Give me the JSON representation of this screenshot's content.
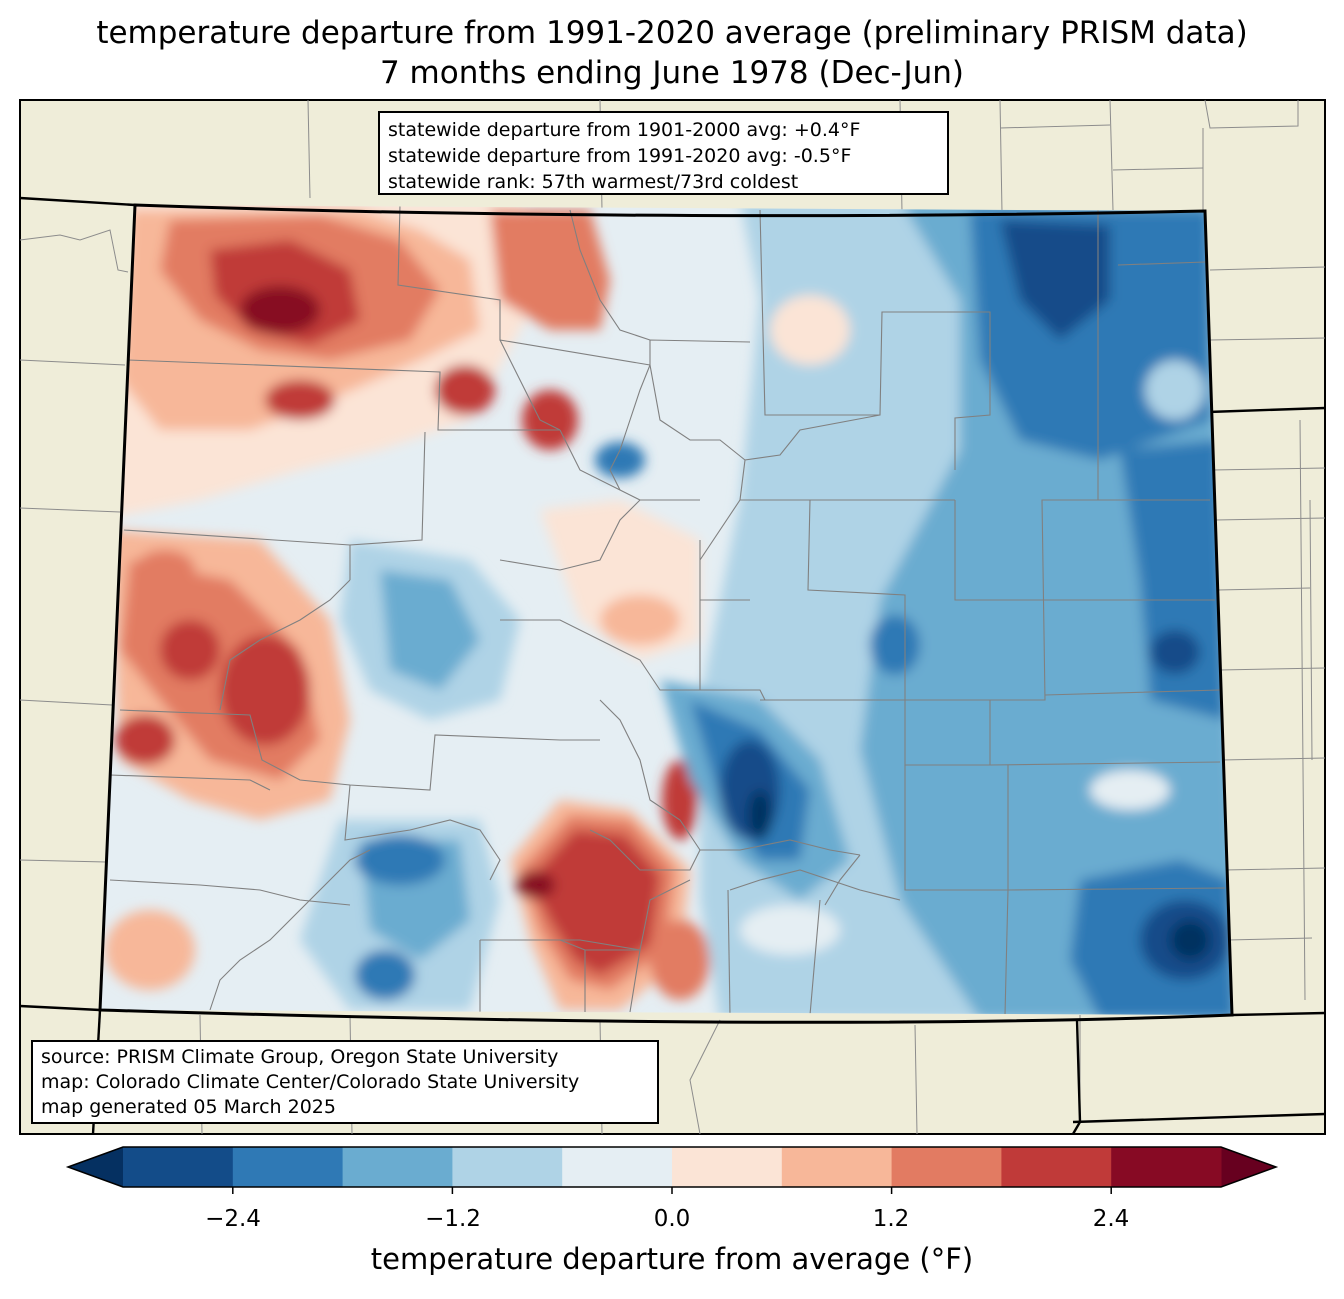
{
  "title": {
    "line1": "temperature departure from 1991-2020 average (preliminary PRISM data)",
    "line2": "7 months ending June 1978 (Dec-Jun)"
  },
  "stats_box": {
    "line1": "statewide departure from 1901-2000 avg: +0.4°F",
    "line2": "statewide departure from 1991-2020 avg: -0.5°F",
    "line3": "statewide rank: 57th warmest/73rd coldest"
  },
  "source_box": {
    "line1": "source: PRISM Climate Group, Oregon State University",
    "line2": "map: Colorado Climate Center/Colorado State University",
    "line3": "map generated 05 March 2025"
  },
  "colorbar": {
    "label": "temperature departure from average (°F)",
    "ticks": [
      "−2.4",
      "−1.2",
      "0.0",
      "1.2",
      "2.4"
    ],
    "levels": [
      -3.0,
      -2.4,
      -1.8,
      -1.2,
      -0.6,
      0.0,
      0.6,
      1.2,
      1.8,
      2.4,
      3.0
    ],
    "colors": [
      "#053061",
      "#134c89",
      "#2f79b5",
      "#6aacd0",
      "#afd3e6",
      "#e5eef3",
      "#fbe4d6",
      "#f7b799",
      "#e27b62",
      "#c03a39",
      "#870a24",
      "#67001f"
    ]
  },
  "map_colors": {
    "land": "#efedd9",
    "state_border": "#000000",
    "county_border": "#808080"
  }
}
